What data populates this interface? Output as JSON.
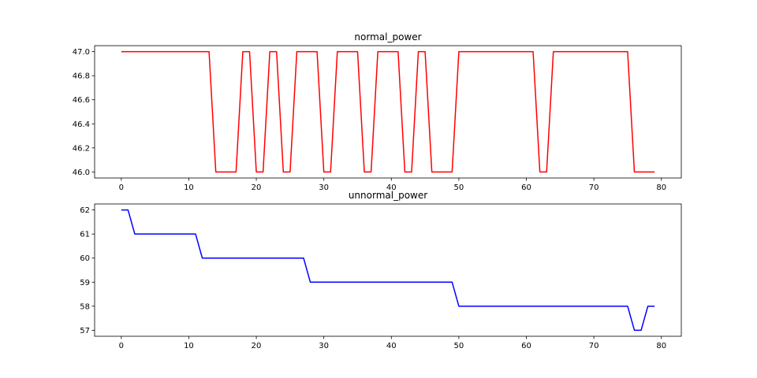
{
  "chart_data": [
    {
      "type": "line",
      "title": "normal_power",
      "xlabel": "",
      "ylabel": "",
      "xlim": [
        -3.95,
        82.95
      ],
      "ylim": [
        45.95,
        47.05
      ],
      "xticks": [
        0,
        10,
        20,
        30,
        40,
        50,
        60,
        70,
        80
      ],
      "yticks": [
        46.0,
        46.2,
        46.4,
        46.6,
        46.8,
        47.0
      ],
      "ytick_labels": [
        "46.0",
        "46.2",
        "46.4",
        "46.6",
        "46.8",
        "47.0"
      ],
      "grid": false,
      "color": "#ff0000",
      "series": [
        {
          "x": [
            0,
            1,
            2,
            3,
            4,
            5,
            6,
            7,
            8,
            9,
            10,
            11,
            12,
            13,
            14,
            15,
            16,
            17,
            18,
            19,
            20,
            21,
            22,
            23,
            24,
            25,
            26,
            27,
            28,
            29,
            30,
            31,
            32,
            33,
            34,
            35,
            36,
            37,
            38,
            39,
            40,
            41,
            42,
            43,
            44,
            45,
            46,
            47,
            48,
            49,
            50,
            51,
            52,
            53,
            54,
            55,
            56,
            57,
            58,
            59,
            60,
            61,
            62,
            63,
            64,
            65,
            66,
            67,
            68,
            69,
            70,
            71,
            72,
            73,
            74,
            75,
            76,
            77,
            78,
            79
          ],
          "values": [
            47,
            47,
            47,
            47,
            47,
            47,
            47,
            47,
            47,
            47,
            47,
            47,
            47,
            47,
            46,
            46,
            46,
            46,
            47,
            47,
            46,
            46,
            47,
            47,
            46,
            46,
            47,
            47,
            47,
            47,
            46,
            46,
            47,
            47,
            47,
            47,
            46,
            46,
            47,
            47,
            47,
            47,
            46,
            46,
            47,
            47,
            46,
            46,
            46,
            46,
            47,
            47,
            47,
            47,
            47,
            47,
            47,
            47,
            47,
            47,
            47,
            47,
            46,
            46,
            47,
            47,
            47,
            47,
            47,
            47,
            47,
            47,
            47,
            47,
            47,
            47,
            46,
            46,
            46,
            46
          ]
        }
      ]
    },
    {
      "type": "line",
      "title": "unnormal_power",
      "xlabel": "",
      "ylabel": "",
      "xlim": [
        -3.95,
        82.95
      ],
      "ylim": [
        56.75,
        62.25
      ],
      "xticks": [
        0,
        10,
        20,
        30,
        40,
        50,
        60,
        70,
        80
      ],
      "yticks": [
        57,
        58,
        59,
        60,
        61,
        62
      ],
      "ytick_labels": [
        "57",
        "58",
        "59",
        "60",
        "61",
        "62"
      ],
      "grid": false,
      "color": "#0000ff",
      "series": [
        {
          "x": [
            0,
            1,
            2,
            3,
            4,
            5,
            6,
            7,
            8,
            9,
            10,
            11,
            12,
            13,
            14,
            15,
            16,
            17,
            18,
            19,
            20,
            21,
            22,
            23,
            24,
            25,
            26,
            27,
            28,
            29,
            30,
            31,
            32,
            33,
            34,
            35,
            36,
            37,
            38,
            39,
            40,
            41,
            42,
            43,
            44,
            45,
            46,
            47,
            48,
            49,
            50,
            51,
            52,
            53,
            54,
            55,
            56,
            57,
            58,
            59,
            60,
            61,
            62,
            63,
            64,
            65,
            66,
            67,
            68,
            69,
            70,
            71,
            72,
            73,
            74,
            75,
            76,
            77,
            78,
            79
          ],
          "values": [
            62,
            62,
            61,
            61,
            61,
            61,
            61,
            61,
            61,
            61,
            61,
            61,
            60,
            60,
            60,
            60,
            60,
            60,
            60,
            60,
            60,
            60,
            60,
            60,
            60,
            60,
            60,
            60,
            59,
            59,
            59,
            59,
            59,
            59,
            59,
            59,
            59,
            59,
            59,
            59,
            59,
            59,
            59,
            59,
            59,
            59,
            59,
            59,
            59,
            59,
            58,
            58,
            58,
            58,
            58,
            58,
            58,
            58,
            58,
            58,
            58,
            58,
            58,
            58,
            58,
            58,
            58,
            58,
            58,
            58,
            58,
            58,
            58,
            58,
            58,
            58,
            57,
            57,
            58,
            58
          ]
        }
      ]
    }
  ]
}
